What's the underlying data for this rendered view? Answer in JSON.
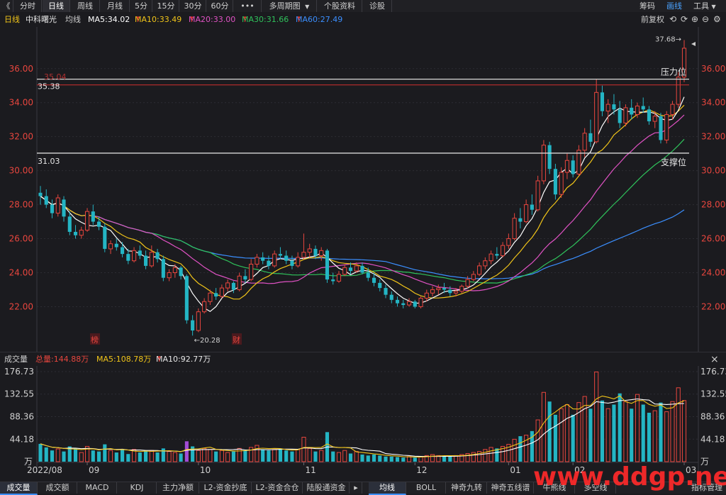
{
  "toolbar": {
    "back_glyph": "《",
    "tabs": [
      "分时",
      "日线",
      "周线",
      "月线",
      "5分",
      "15分",
      "30分",
      "60分",
      "•••",
      "多周期图",
      "个股资料",
      "诊股"
    ],
    "active_tab": "日线",
    "right": [
      "筹码",
      "画线",
      "工具"
    ],
    "right_active": "画线"
  },
  "legend": {
    "period": "日线",
    "stock_name": "中科曙光",
    "avg_label": "均线",
    "ma5": "MA5:34.02",
    "ma10": "MA10:33.49",
    "ma20": "MA20:33.00",
    "ma30": "MA30:31.66",
    "ma60": "MA60:27.49",
    "restore": "前复权",
    "colors": {
      "ma5": "#ffffff",
      "ma10": "#f0c419",
      "ma20": "#e052c4",
      "ma30": "#2fc25b",
      "ma60": "#3b8fff",
      "up": "#e8463e",
      "down": "#24b5c4"
    }
  },
  "volume_legend": {
    "title": "成交量",
    "total": "总量:144.88万",
    "ma5": "MA5:108.78万",
    "ma10": "MA10:92.77万",
    "close_glyph": "×"
  },
  "bottom_tabs_left": [
    "成交量",
    "成交额",
    "MACD",
    "KDJ",
    "主力净额",
    "L2-资金抄底",
    "L2-资金合仓",
    "陆股通资金"
  ],
  "bottom_tabs_right": [
    "均线",
    "BOLL",
    "神奇九转",
    "神奇五线谱",
    "牛熊线",
    "多空线",
    "指标管理"
  ],
  "bottom_active_left": "成交量",
  "bottom_active_right": "均线",
  "watermark": "www.ddgp.net",
  "chart_data": {
    "type": "candlestick",
    "price_axis": {
      "ticks": [
        "36.00",
        "34.00",
        "32.00",
        "30.00",
        "28.00",
        "26.00",
        "24.00",
        "22.00"
      ],
      "ylim": [
        19.6,
        38.2
      ]
    },
    "volume_axis": {
      "ticks": [
        "176.73",
        "132.55",
        "88.36",
        "44.18"
      ],
      "unit": "万",
      "ylim": [
        0,
        176.73
      ]
    },
    "x_labels": [
      "2022/08",
      "09",
      "10",
      "11",
      "12",
      "01",
      "02",
      "03"
    ],
    "annotations": {
      "high_label": "37.68",
      "low_label": "20.28",
      "resistance_value": "35.38",
      "resistance_label": "压力位",
      "red_line_value": "35.04",
      "support_value": "31.03",
      "support_label": "支撑位",
      "event_tags": [
        "榜",
        "财"
      ]
    },
    "ohlc": [
      [
        28.7,
        29.1,
        28.0,
        28.5
      ],
      [
        28.5,
        28.9,
        27.8,
        28.0
      ],
      [
        28.0,
        28.3,
        27.2,
        27.5
      ],
      [
        27.5,
        28.6,
        27.3,
        28.4
      ],
      [
        28.3,
        28.5,
        27.0,
        27.3
      ],
      [
        27.3,
        27.6,
        26.2,
        26.4
      ],
      [
        26.4,
        26.8,
        26.0,
        26.2
      ],
      [
        26.2,
        26.7,
        26.0,
        26.5
      ],
      [
        26.5,
        27.8,
        26.4,
        27.6
      ],
      [
        27.6,
        28.0,
        26.8,
        27.0
      ],
      [
        27.0,
        27.3,
        26.5,
        26.7
      ],
      [
        26.7,
        26.9,
        25.2,
        25.4
      ],
      [
        25.4,
        25.9,
        25.1,
        25.7
      ],
      [
        25.7,
        26.0,
        25.3,
        25.5
      ],
      [
        25.5,
        25.8,
        24.9,
        25.1
      ],
      [
        25.1,
        25.4,
        24.5,
        24.7
      ],
      [
        24.7,
        25.5,
        24.6,
        25.3
      ],
      [
        25.3,
        25.6,
        24.8,
        25.0
      ],
      [
        25.0,
        25.3,
        24.2,
        24.4
      ],
      [
        24.4,
        25.6,
        24.3,
        25.2
      ],
      [
        25.2,
        25.4,
        24.6,
        24.8
      ],
      [
        24.8,
        25.0,
        23.5,
        23.7
      ],
      [
        23.7,
        24.2,
        23.5,
        24.0
      ],
      [
        24.0,
        24.5,
        23.7,
        24.3
      ],
      [
        24.3,
        24.4,
        23.6,
        23.8
      ],
      [
        23.8,
        23.9,
        21.0,
        21.2
      ],
      [
        21.2,
        21.5,
        20.3,
        20.6
      ],
      [
        20.6,
        21.9,
        20.5,
        21.7
      ],
      [
        21.7,
        22.5,
        21.6,
        22.3
      ],
      [
        22.3,
        23.0,
        22.1,
        22.8
      ],
      [
        22.8,
        23.1,
        22.4,
        22.6
      ],
      [
        22.6,
        23.3,
        22.5,
        23.1
      ],
      [
        23.1,
        23.6,
        22.9,
        23.4
      ],
      [
        23.4,
        23.5,
        22.8,
        23.0
      ],
      [
        23.0,
        24.0,
        22.9,
        23.8
      ],
      [
        23.8,
        24.2,
        23.4,
        23.6
      ],
      [
        23.6,
        24.8,
        23.5,
        24.5
      ],
      [
        24.5,
        25.1,
        24.3,
        24.9
      ],
      [
        24.9,
        25.2,
        24.5,
        24.7
      ],
      [
        24.7,
        25.0,
        24.2,
        24.4
      ],
      [
        24.4,
        25.3,
        24.3,
        25.1
      ],
      [
        25.1,
        25.5,
        24.8,
        25.0
      ],
      [
        25.0,
        25.3,
        24.5,
        24.7
      ],
      [
        24.7,
        25.0,
        24.2,
        24.4
      ],
      [
        24.4,
        25.2,
        24.3,
        24.9
      ],
      [
        24.9,
        26.3,
        24.8,
        25.2
      ],
      [
        25.2,
        25.7,
        24.9,
        25.4
      ],
      [
        25.4,
        25.6,
        24.8,
        25.0
      ],
      [
        25.0,
        25.5,
        24.7,
        25.3
      ],
      [
        25.3,
        25.4,
        23.4,
        23.6
      ],
      [
        23.6,
        24.0,
        23.3,
        23.5
      ],
      [
        23.5,
        24.1,
        23.4,
        23.9
      ],
      [
        23.9,
        24.5,
        23.8,
        24.3
      ],
      [
        24.3,
        24.6,
        23.9,
        24.1
      ],
      [
        24.1,
        24.6,
        24.0,
        24.4
      ],
      [
        24.4,
        24.6,
        23.9,
        24.0
      ],
      [
        24.0,
        24.3,
        23.5,
        23.7
      ],
      [
        23.7,
        24.0,
        23.2,
        23.4
      ],
      [
        23.4,
        23.6,
        22.9,
        23.1
      ],
      [
        23.1,
        23.3,
        22.5,
        22.7
      ],
      [
        22.7,
        22.9,
        22.2,
        22.4
      ],
      [
        22.4,
        22.6,
        22.0,
        22.2
      ],
      [
        22.2,
        22.4,
        21.9,
        22.1
      ],
      [
        22.1,
        22.5,
        22.0,
        22.3
      ],
      [
        22.3,
        22.4,
        21.9,
        22.0
      ],
      [
        22.0,
        22.6,
        21.9,
        22.5
      ],
      [
        22.5,
        23.0,
        22.3,
        22.8
      ],
      [
        22.8,
        23.2,
        22.6,
        23.0
      ],
      [
        23.0,
        23.3,
        22.7,
        23.1
      ],
      [
        23.1,
        23.4,
        22.8,
        23.0
      ],
      [
        23.0,
        23.2,
        22.6,
        22.8
      ],
      [
        22.8,
        23.1,
        22.6,
        22.9
      ],
      [
        22.9,
        23.3,
        22.8,
        23.2
      ],
      [
        23.2,
        23.8,
        23.1,
        23.6
      ],
      [
        23.6,
        24.1,
        23.5,
        23.9
      ],
      [
        23.9,
        24.6,
        23.8,
        24.4
      ],
      [
        24.4,
        24.9,
        24.2,
        24.7
      ],
      [
        24.7,
        25.3,
        24.5,
        25.1
      ],
      [
        25.1,
        25.5,
        24.8,
        25.0
      ],
      [
        25.0,
        25.8,
        24.9,
        25.6
      ],
      [
        25.6,
        26.3,
        25.4,
        26.0
      ],
      [
        26.0,
        27.5,
        25.9,
        27.2
      ],
      [
        27.2,
        27.8,
        26.6,
        27.0
      ],
      [
        27.0,
        28.3,
        26.9,
        28.0
      ],
      [
        28.0,
        28.6,
        27.4,
        27.7
      ],
      [
        27.7,
        29.7,
        27.6,
        29.4
      ],
      [
        29.4,
        31.8,
        29.2,
        31.5
      ],
      [
        31.5,
        31.7,
        29.8,
        30.1
      ],
      [
        30.1,
        30.4,
        28.3,
        28.6
      ],
      [
        28.6,
        30.2,
        28.4,
        29.9
      ],
      [
        29.9,
        31.0,
        29.5,
        30.6
      ],
      [
        30.6,
        30.9,
        29.6,
        29.8
      ],
      [
        29.8,
        31.5,
        29.7,
        31.2
      ],
      [
        31.2,
        32.5,
        30.8,
        32.2
      ],
      [
        32.2,
        33.0,
        31.4,
        31.7
      ],
      [
        31.7,
        35.4,
        31.6,
        34.6
      ],
      [
        34.6,
        35.0,
        33.2,
        33.5
      ],
      [
        33.5,
        34.2,
        32.8,
        33.9
      ],
      [
        33.9,
        34.5,
        33.3,
        33.6
      ],
      [
        33.6,
        34.1,
        32.5,
        32.8
      ],
      [
        32.8,
        33.9,
        32.6,
        33.7
      ],
      [
        33.7,
        34.2,
        33.0,
        33.3
      ],
      [
        33.3,
        34.0,
        33.1,
        33.8
      ],
      [
        33.8,
        34.3,
        33.4,
        33.6
      ],
      [
        33.6,
        33.8,
        32.7,
        32.9
      ],
      [
        32.9,
        33.5,
        32.5,
        33.2
      ],
      [
        33.2,
        33.4,
        31.6,
        31.8
      ],
      [
        31.8,
        33.5,
        31.6,
        33.3
      ],
      [
        33.3,
        34.1,
        33.0,
        33.9
      ],
      [
        33.9,
        35.8,
        33.7,
        35.5
      ],
      [
        35.5,
        37.68,
        35.2,
        37.2
      ]
    ],
    "volume": [
      35,
      28,
      22,
      25,
      20,
      30,
      26,
      18,
      30,
      22,
      20,
      34,
      22,
      18,
      25,
      15,
      24,
      18,
      22,
      22,
      18,
      26,
      20,
      18,
      16,
      40,
      30,
      22,
      26,
      24,
      20,
      22,
      18,
      20,
      26,
      22,
      28,
      32,
      24,
      22,
      24,
      26,
      22,
      20,
      24,
      48,
      26,
      20,
      22,
      58,
      20,
      18,
      22,
      16,
      20,
      14,
      12,
      14,
      12,
      10,
      10,
      9,
      8,
      10,
      8,
      10,
      12,
      14,
      12,
      11,
      10,
      12,
      14,
      16,
      18,
      20,
      24,
      28,
      26,
      30,
      34,
      44,
      50,
      52,
      60,
      82,
      136,
      118,
      92,
      104,
      112,
      92,
      116,
      128,
      104,
      176,
      120,
      104,
      112,
      134,
      118,
      104,
      132,
      112,
      96,
      100,
      116,
      98,
      118,
      145,
      120
    ]
  }
}
